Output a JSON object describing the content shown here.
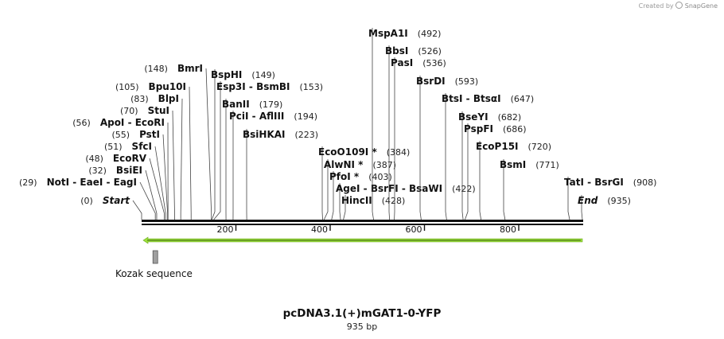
{
  "watermark": {
    "prefix": "Created by",
    "brand": "SnapGene"
  },
  "map": {
    "title": "pcDNA3.1(+)mGAT1-0-YFP",
    "length_label": "935 bp",
    "length_bp": 935,
    "ticks": [
      "200",
      "400",
      "600",
      "800"
    ],
    "tick_positions_bp": [
      200,
      400,
      600,
      800
    ],
    "orf": {
      "direction": "reverse",
      "start_bp": 0,
      "end_bp": 935,
      "color": "#9ce03a"
    },
    "feature": {
      "name": "Kozak sequence",
      "start_bp": 24,
      "end_bp": 33,
      "color": "#a0a0a0"
    },
    "sites": [
      {
        "name": "Start",
        "italic": true,
        "pos": "(0)",
        "bp": 0
      },
      {
        "name": "NotI  -  EaeI  -  EagI",
        "pos": "(29)",
        "bp": 29
      },
      {
        "name": "BsiEI",
        "pos": "(32)",
        "bp": 32
      },
      {
        "name": "EcoRV",
        "pos": "(48)",
        "bp": 48
      },
      {
        "name": "SfcI",
        "pos": "(51)",
        "bp": 51
      },
      {
        "name": "PstI",
        "pos": "(55)",
        "bp": 55
      },
      {
        "name": "ApoI  -  EcoRI",
        "pos": "(56)",
        "bp": 56
      },
      {
        "name": "StuI",
        "pos": "(70)",
        "bp": 70
      },
      {
        "name": "BlpI",
        "pos": "(83)",
        "bp": 83
      },
      {
        "name": "Bpu10I",
        "pos": "(105)",
        "bp": 105
      },
      {
        "name": "BmrI",
        "pos": "(148)",
        "bp": 148
      },
      {
        "name": "BspHI",
        "pos": "(149)",
        "bp": 149
      },
      {
        "name": "Esp3I  -  BsmBI",
        "pos": "(153)",
        "bp": 153
      },
      {
        "name": "BanII",
        "pos": "(179)",
        "bp": 179
      },
      {
        "name": "PciI  -  AflIII",
        "pos": "(194)",
        "bp": 194
      },
      {
        "name": "BsiHKAI",
        "pos": "(223)",
        "bp": 223
      },
      {
        "name": "EcoO109I *",
        "pos": "(384)",
        "bp": 384
      },
      {
        "name": "AlwNI *",
        "pos": "(387)",
        "bp": 387
      },
      {
        "name": "PfoI *",
        "pos": "(403)",
        "bp": 403
      },
      {
        "name": "AgeI  -  BsrFI  -  BsaWI",
        "pos": "(422)",
        "bp": 422
      },
      {
        "name": "HincII",
        "pos": "(428)",
        "bp": 428
      },
      {
        "name": "MspA1I",
        "pos": "(492)",
        "bp": 492
      },
      {
        "name": "BbsI",
        "pos": "(526)",
        "bp": 526
      },
      {
        "name": "PasI",
        "pos": "(536)",
        "bp": 536
      },
      {
        "name": "BsrDI",
        "pos": "(593)",
        "bp": 593
      },
      {
        "name": "BtsI  -  BtsαI",
        "pos": "(647)",
        "bp": 647
      },
      {
        "name": "BseYI",
        "pos": "(682)",
        "bp": 682
      },
      {
        "name": "PspFI",
        "pos": "(686)",
        "bp": 686
      },
      {
        "name": "EcoP15I",
        "pos": "(720)",
        "bp": 720
      },
      {
        "name": "BsmI",
        "pos": "(771)",
        "bp": 771
      },
      {
        "name": "TatI  -  BsrGI",
        "pos": "(908)",
        "bp": 908
      },
      {
        "name": "End",
        "italic": true,
        "pos": "(935)",
        "bp": 935
      }
    ]
  }
}
